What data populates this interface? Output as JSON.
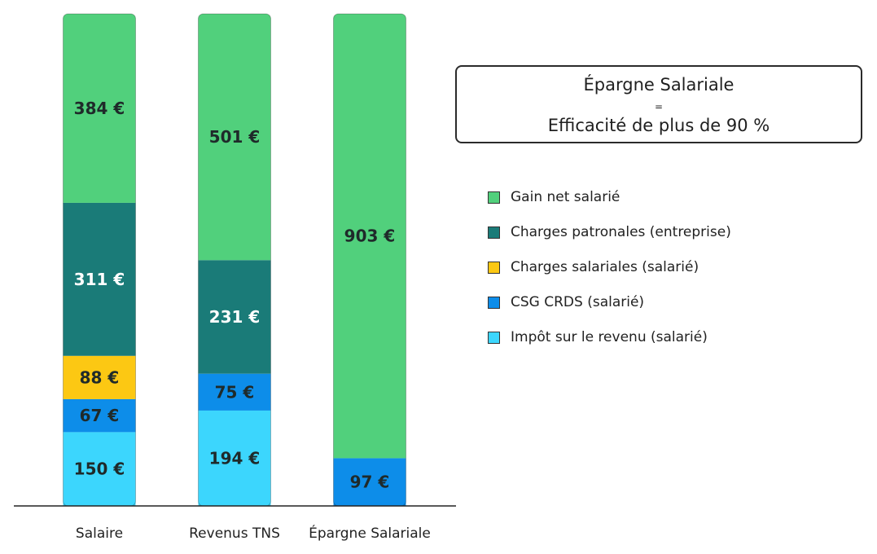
{
  "chart_data": {
    "type": "bar",
    "stacked": true,
    "categories": [
      "Salaire",
      "Revenus TNS",
      "Épargne Salariale"
    ],
    "series": [
      {
        "name": "Gain net salarié",
        "color": "#51d07c",
        "values": [
          384,
          501,
          903
        ],
        "labels": [
          "384 €",
          "501 €",
          "903 €"
        ]
      },
      {
        "name": "Charges patronales (entreprise)",
        "color": "#1a7b78",
        "values": [
          311,
          231,
          0
        ],
        "labels": [
          "311 €",
          "231 €",
          ""
        ]
      },
      {
        "name": "Charges salariales (salarié)",
        "color": "#fcc813",
        "values": [
          88,
          0,
          0
        ],
        "labels": [
          "88 €",
          "",
          ""
        ]
      },
      {
        "name": "CSG CRDS (salarié)",
        "color": "#0d8de9",
        "values": [
          67,
          75,
          97
        ],
        "labels": [
          "67 €",
          "75 €",
          "97 €"
        ]
      },
      {
        "name": "Impôt sur le revenu (salarié)",
        "color": "#3cd6fd",
        "values": [
          150,
          194,
          0
        ],
        "labels": [
          "150 €",
          "194 €",
          ""
        ]
      }
    ],
    "stack_order_bottom_to_top": [
      4,
      3,
      2,
      1,
      0
    ],
    "ylim": [
      0,
      1000
    ],
    "grid": false,
    "legend_position": "right",
    "xlabel": "",
    "ylabel": ""
  },
  "callout": {
    "line1": "Épargne Salariale",
    "eq": "=",
    "line2": "Efficacité de plus de 90 %"
  },
  "colors": {
    "axis": "#222222",
    "dark_label": "#1f2a2a",
    "light_label": "#ffffff"
  }
}
